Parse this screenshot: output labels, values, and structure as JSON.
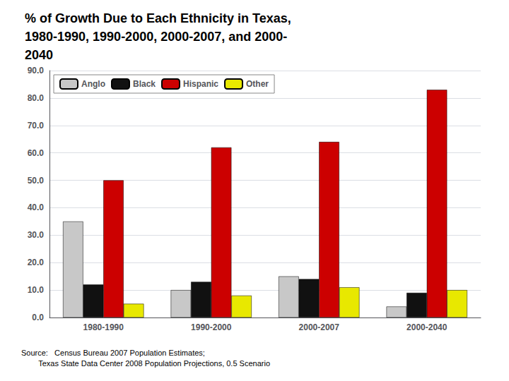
{
  "chart_data": {
    "type": "bar",
    "title": "% of Growth Due to Each Ethnicity in Texas,\n1980-1990, 1990-2000, 2000-2007, and 2000-\n2040",
    "categories": [
      "1980-1990",
      "1990-2000",
      "2000-2007",
      "2000-2040"
    ],
    "series": [
      {
        "name": "Anglo",
        "color": "#c8c8c8",
        "values": [
          35.0,
          10.0,
          15.0,
          4.0
        ]
      },
      {
        "name": "Black",
        "color": "#111111",
        "values": [
          12.0,
          13.0,
          14.0,
          9.0
        ]
      },
      {
        "name": "Hispanic",
        "color": "#cc0000",
        "values": [
          50.0,
          62.0,
          64.0,
          83.0
        ]
      },
      {
        "name": "Other",
        "color": "#e8e800",
        "values": [
          5.0,
          8.0,
          11.0,
          10.0
        ]
      }
    ],
    "ylim": [
      0,
      90
    ],
    "yticks": [
      {
        "value": 0,
        "label": "0.0"
      },
      {
        "value": 10,
        "label": "10.0"
      },
      {
        "value": 20,
        "label": "20.0"
      },
      {
        "value": 30,
        "label": "30.0"
      },
      {
        "value": 40,
        "label": "40.0"
      },
      {
        "value": 50,
        "label": "50.0"
      },
      {
        "value": 60,
        "label": "60.0"
      },
      {
        "value": 70,
        "label": "70.0"
      },
      {
        "value": 80,
        "label": "80.0"
      },
      {
        "value": 90,
        "label": "90.0"
      }
    ],
    "grid": true,
    "legend": "upper left",
    "annotations": [
      "Source:   Census Bureau 2007 Population Estimates;\n        Texas State Data Center 2008 Population Projections, 0.5 Scenario"
    ]
  }
}
